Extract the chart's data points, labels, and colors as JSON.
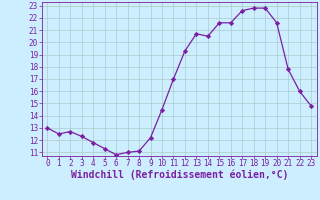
{
  "hours": [
    0,
    1,
    2,
    3,
    4,
    5,
    6,
    7,
    8,
    9,
    10,
    11,
    12,
    13,
    14,
    15,
    16,
    17,
    18,
    19,
    20,
    21,
    22,
    23
  ],
  "values": [
    13.0,
    12.5,
    12.7,
    12.3,
    11.8,
    11.3,
    10.8,
    11.0,
    11.1,
    12.2,
    14.5,
    17.0,
    19.3,
    20.7,
    20.5,
    21.6,
    21.6,
    22.6,
    22.8,
    22.8,
    21.6,
    17.8,
    16.0,
    14.8
  ],
  "line_color": "#7b1fa2",
  "marker": "D",
  "markersize": 2.2,
  "linewidth": 0.9,
  "bg_color": "#cceeff",
  "grid_color": "#aacccc",
  "xlabel": "Windchill (Refroidissement éolien,°C)",
  "xlabel_fontsize": 7,
  "ylim": [
    11,
    23
  ],
  "yticks": [
    11,
    12,
    13,
    14,
    15,
    16,
    17,
    18,
    19,
    20,
    21,
    22,
    23
  ],
  "xticks": [
    0,
    1,
    2,
    3,
    4,
    5,
    6,
    7,
    8,
    9,
    10,
    11,
    12,
    13,
    14,
    15,
    16,
    17,
    18,
    19,
    20,
    21,
    22,
    23
  ],
  "tick_fontsize": 5.5
}
